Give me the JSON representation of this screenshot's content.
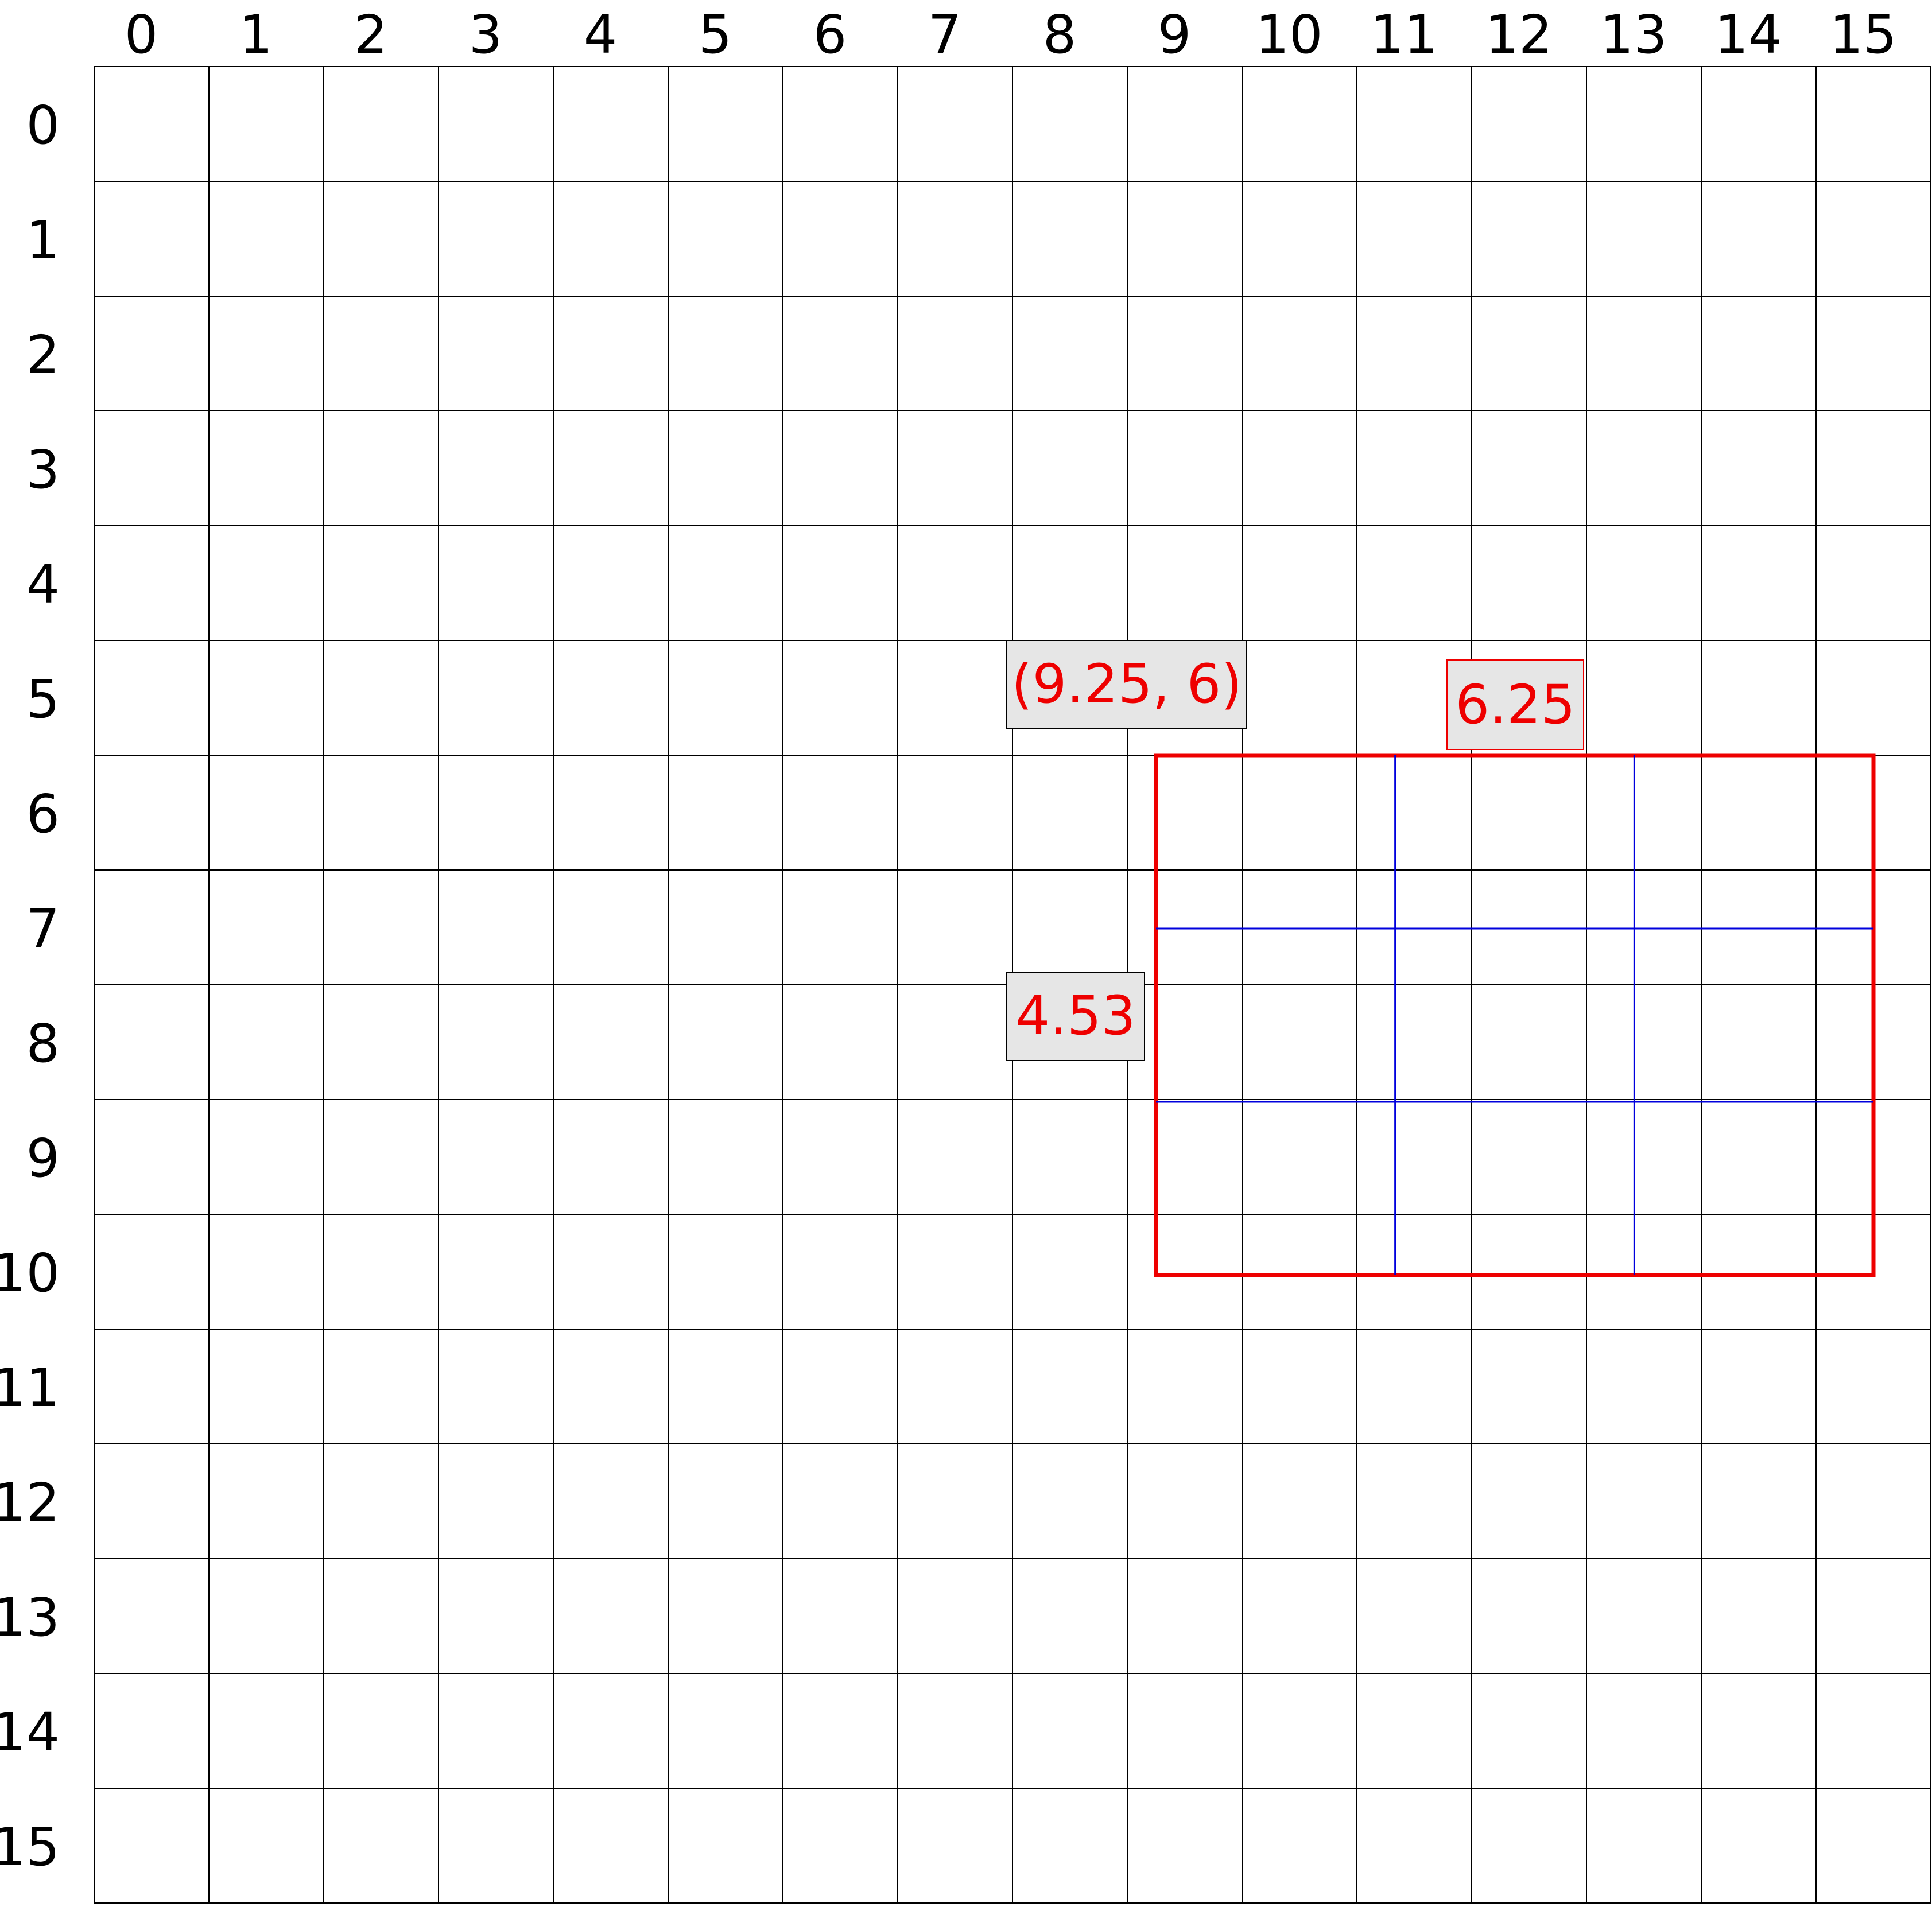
{
  "grid": {
    "columns": [
      "0",
      "1",
      "2",
      "3",
      "4",
      "5",
      "6",
      "7",
      "8",
      "9",
      "10",
      "11",
      "12",
      "13",
      "14",
      "15"
    ],
    "rows": [
      "0",
      "1",
      "2",
      "3",
      "4",
      "5",
      "6",
      "7",
      "8",
      "9",
      "10",
      "11",
      "12",
      "13",
      "14",
      "15"
    ],
    "line_color": "#000000",
    "background": "#ffffff"
  },
  "shape": {
    "name": "rectangle",
    "origin": [
      9.25,
      6
    ],
    "width": 6.25,
    "height": 4.53,
    "stroke_color": "#ee0000",
    "divisions": {
      "columns": 3,
      "rows": 3
    },
    "division_color": "#0000dd"
  },
  "labels": {
    "origin": "(9.25, 6)",
    "width": "6.25",
    "height": "4.53"
  },
  "colors": {
    "label_text": "#ee0000",
    "label_fill": "#e6e6e6",
    "label_border_dark": "#000000",
    "label_border_red": "#ee0000"
  }
}
